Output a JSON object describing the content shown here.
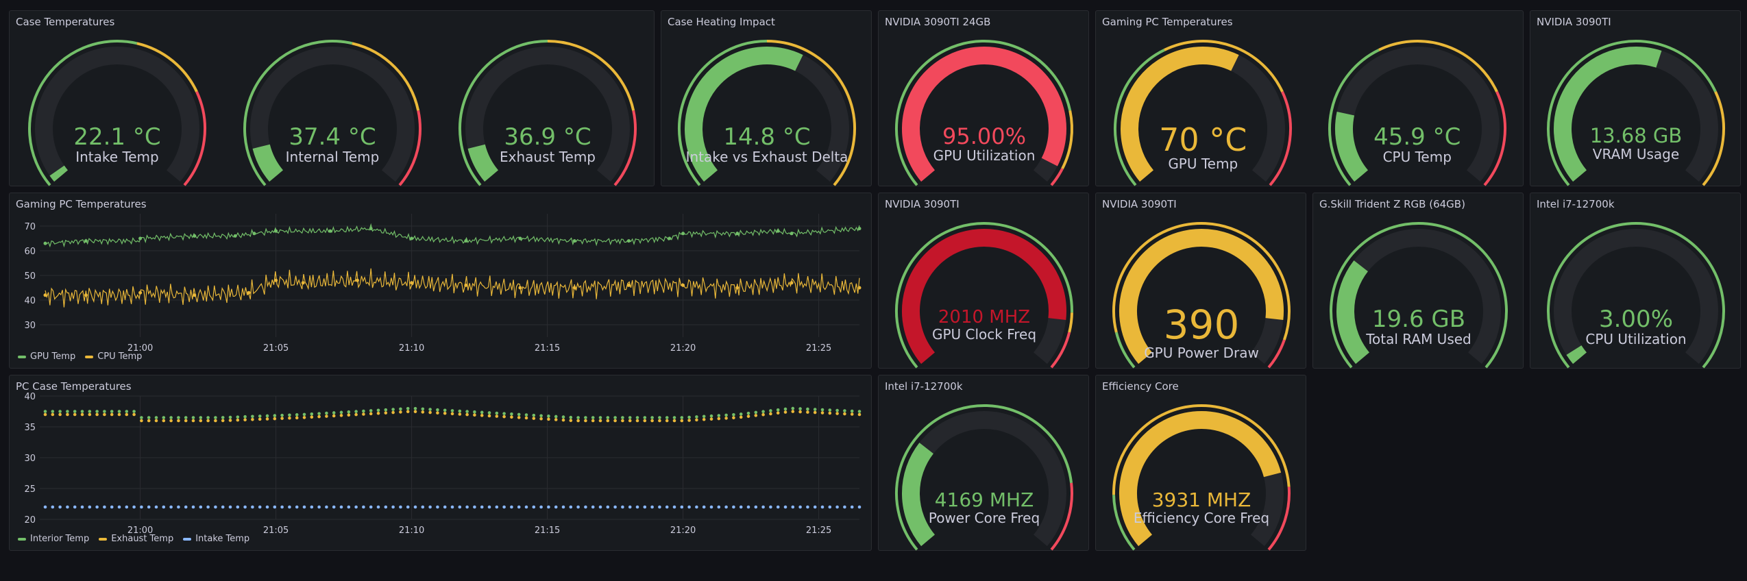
{
  "colors": {
    "green": "#73bf69",
    "yellow": "#eab839",
    "red": "#f2495c",
    "darkred": "#c4162a",
    "track": "#25272c",
    "blue": "#8ab8ff",
    "text": "#ccccdc"
  },
  "panels": {
    "case_temps": {
      "title": "Case Temperatures",
      "gauges": [
        {
          "value_text": "22.1 °C",
          "label": "Intake Temp",
          "fraction": 0.02,
          "color": "green",
          "thresholds": [
            [
              "green",
              0,
              0.55
            ],
            [
              "yellow",
              0.55,
              0.75
            ],
            [
              "red",
              0.75,
              1
            ]
          ]
        },
        {
          "value_text": "37.4 °C",
          "label": "Internal Temp",
          "fraction": 0.1,
          "color": "green",
          "thresholds": [
            [
              "green",
              0,
              0.55
            ],
            [
              "yellow",
              0.55,
              0.8
            ],
            [
              "red",
              0.8,
              1
            ]
          ]
        },
        {
          "value_text": "36.9 °C",
          "label": "Exhaust Temp",
          "fraction": 0.1,
          "color": "green",
          "thresholds": [
            [
              "green",
              0,
              0.5
            ],
            [
              "yellow",
              0.5,
              0.8
            ],
            [
              "red",
              0.8,
              1
            ]
          ]
        }
      ]
    },
    "case_heating": {
      "title": "Case Heating Impact",
      "gauges": [
        {
          "value_text": "14.8 °C",
          "label": "Intake vs Exhaust Delta",
          "fraction": 0.6,
          "color": "green",
          "thresholds": [
            [
              "green",
              0,
              0.5
            ],
            [
              "yellow",
              0.5,
              1
            ]
          ]
        }
      ]
    },
    "nvidia_24gb": {
      "title": "NVIDIA 3090TI 24GB",
      "gauges": [
        {
          "value_text": "95.00%",
          "label": "GPU Utilization",
          "fraction": 0.95,
          "color": "red",
          "thresholds": [
            [
              "green",
              0,
              0.8
            ],
            [
              "yellow",
              0.8,
              0.95
            ],
            [
              "red",
              0.95,
              1
            ]
          ]
        }
      ]
    },
    "gaming_pc_temps_gauge": {
      "title": "Gaming PC Temperatures",
      "gauges": [
        {
          "value_text": "70 °C",
          "label": "GPU Temp",
          "fraction": 0.6,
          "color": "yellow",
          "thresholds": [
            [
              "green",
              0,
              0.4
            ],
            [
              "yellow",
              0.4,
              0.75
            ],
            [
              "red",
              0.75,
              1
            ]
          ]
        },
        {
          "value_text": "45.9 °C",
          "label": "CPU Temp",
          "fraction": 0.2,
          "color": "green",
          "thresholds": [
            [
              "green",
              0,
              0.4
            ],
            [
              "yellow",
              0.4,
              0.75
            ],
            [
              "red",
              0.75,
              1
            ]
          ]
        }
      ]
    },
    "nvidia_vram": {
      "title": "NVIDIA 3090TI",
      "gauges": [
        {
          "value_text": "13.68 GB",
          "label": "VRAM Usage",
          "fraction": 0.57,
          "color": "green",
          "thresholds": [
            [
              "green",
              0,
              0.75
            ],
            [
              "yellow",
              0.75,
              1
            ]
          ]
        }
      ]
    },
    "gaming_pc_ts": {
      "title": "Gaming PC Temperatures",
      "y_ticks": [
        "70",
        "60",
        "50",
        "40",
        "30"
      ],
      "x_ticks": [
        "21:00",
        "21:05",
        "21:10",
        "21:15",
        "21:20",
        "21:25"
      ],
      "legend": [
        {
          "label": "GPU Temp",
          "color": "green"
        },
        {
          "label": "CPU Temp",
          "color": "yellow"
        }
      ]
    },
    "nvidia_clock": {
      "title": "NVIDIA 3090TI",
      "gauges": [
        {
          "value_text": "2010 MHZ",
          "label": "GPU Clock Freq",
          "fraction": 0.87,
          "color": "darkred",
          "thresholds": [
            [
              "green",
              0,
              0.85
            ],
            [
              "yellow",
              0.85,
              0.9
            ],
            [
              "red",
              0.9,
              1
            ]
          ]
        }
      ]
    },
    "nvidia_power": {
      "title": "NVIDIA 3090TI",
      "gauges": [
        {
          "value_text": "390",
          "label": "GPU Power Draw",
          "fraction": 0.87,
          "color": "yellow",
          "thresholds": [
            [
              "green",
              0,
              0.1
            ],
            [
              "yellow",
              0.1,
              0.92
            ],
            [
              "red",
              0.92,
              1
            ]
          ]
        }
      ]
    },
    "gskill": {
      "title": "G.Skill Trident Z RGB (64GB)",
      "gauges": [
        {
          "value_text": "19.6 GB",
          "label": "Total RAM Used",
          "fraction": 0.3,
          "color": "green",
          "thresholds": [
            [
              "green",
              0,
              1
            ]
          ]
        }
      ]
    },
    "intel_util": {
      "title": "Intel i7-12700k",
      "gauges": [
        {
          "value_text": "3.00%",
          "label": "CPU Utilization",
          "fraction": 0.03,
          "color": "green",
          "thresholds": [
            [
              "green",
              0,
              1
            ]
          ]
        }
      ]
    },
    "pc_case_ts": {
      "title": "PC Case Temperatures",
      "y_ticks": [
        "40",
        "35",
        "30",
        "25",
        "20"
      ],
      "x_ticks": [
        "21:00",
        "21:05",
        "21:10",
        "21:15",
        "21:20",
        "21:25"
      ],
      "legend": [
        {
          "label": "Interior Temp",
          "color": "green"
        },
        {
          "label": "Exhaust Temp",
          "color": "yellow"
        },
        {
          "label": "Intake Temp",
          "color": "blue"
        }
      ]
    },
    "intel_power": {
      "title": "Intel i7-12700k",
      "gauges": [
        {
          "value_text": "4169 MHZ",
          "label": "Power Core Freq",
          "fraction": 0.3,
          "color": "green",
          "thresholds": [
            [
              "green",
              0,
              0.82
            ],
            [
              "red",
              0.82,
              1
            ]
          ]
        }
      ]
    },
    "efficiency": {
      "title": "Efficiency Core",
      "gauges": [
        {
          "value_text": "3931 MHZ",
          "label": "Efficiency Core Freq",
          "fraction": 0.79,
          "color": "yellow",
          "thresholds": [
            [
              "green",
              0,
              0.15
            ],
            [
              "yellow",
              0.15,
              0.83
            ],
            [
              "red",
              0.83,
              1
            ]
          ]
        }
      ]
    }
  },
  "chart_data": [
    {
      "type": "line",
      "title": "Gaming PC Temperatures",
      "ylim": [
        25,
        75
      ],
      "xlim": [
        -3.5,
        26.5
      ],
      "x_unit": "minutes after 21:00",
      "series": [
        {
          "name": "GPU Temp",
          "color": "green",
          "x": [
            -3.5,
            -2,
            0,
            2,
            3.5,
            4.2,
            5,
            7,
            8.5,
            10,
            12,
            14,
            16,
            18,
            19.5,
            20,
            22,
            23.5,
            24,
            26.5
          ],
          "values": [
            63,
            64,
            65,
            66,
            66,
            67,
            68,
            68,
            69,
            65,
            64,
            65,
            64,
            64,
            65,
            67,
            67,
            68,
            67,
            69
          ]
        },
        {
          "name": "CPU Temp",
          "color": "yellow",
          "x": [
            -3.5,
            -2,
            0,
            2,
            4,
            5,
            6,
            8,
            10,
            12,
            14,
            16,
            18,
            20,
            22,
            24,
            26.5
          ],
          "values": [
            42,
            42,
            43,
            42,
            43,
            48,
            47,
            48,
            47,
            46,
            45,
            45,
            46,
            46,
            45,
            47,
            45
          ]
        }
      ]
    },
    {
      "type": "scatter",
      "title": "PC Case Temperatures",
      "ylim": [
        20,
        40
      ],
      "xlim": [
        -3.5,
        26.5
      ],
      "x_unit": "minutes after 21:00",
      "series": [
        {
          "name": "Interior Temp",
          "color": "green",
          "x": [
            -3.5,
            0,
            3,
            6,
            8,
            10,
            12,
            14,
            16,
            18,
            20,
            22,
            24,
            26.5
          ],
          "values": [
            37.5,
            36.5,
            36.5,
            37,
            37.5,
            38,
            37.5,
            37,
            36.5,
            36.5,
            36.5,
            37,
            38,
            37.5
          ]
        },
        {
          "name": "Exhaust Temp",
          "color": "yellow",
          "x": [
            -3.5,
            0,
            3,
            6,
            8,
            10,
            12,
            14,
            16,
            18,
            20,
            22,
            24,
            26.5
          ],
          "values": [
            37,
            36,
            36,
            36.5,
            37,
            37.5,
            37,
            36.5,
            36,
            36,
            36,
            36.5,
            37.5,
            37
          ]
        },
        {
          "name": "Intake Temp",
          "color": "blue",
          "x": [
            -3.5,
            0,
            5,
            10,
            15,
            20,
            26.5
          ],
          "values": [
            22,
            22,
            22,
            22,
            22,
            22,
            22
          ]
        }
      ]
    }
  ]
}
